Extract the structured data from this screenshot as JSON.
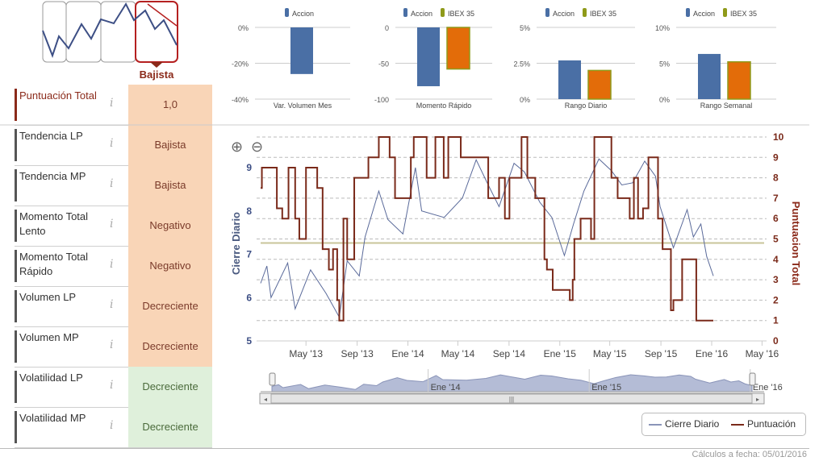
{
  "trend_selector": {
    "selected_label": "Bajista",
    "options": [
      "Lateral bajista",
      "Lateral",
      "Alcista",
      "Bajista"
    ]
  },
  "indicators": [
    {
      "label": "Puntuación Total",
      "value": "1,0",
      "tone": "orange",
      "accent": "#8b2a1a"
    },
    {
      "label": "Tendencia LP",
      "value": "Bajista",
      "tone": "orange"
    },
    {
      "label": "Tendencia MP",
      "value": "Bajista",
      "tone": "orange"
    },
    {
      "label": "Momento Total Lento",
      "value": "Negativo",
      "tone": "orange"
    },
    {
      "label": "Momento Total Rápido",
      "value": "Negativo",
      "tone": "orange"
    },
    {
      "label": "Volumen LP",
      "value": "Decreciente",
      "tone": "orange"
    },
    {
      "label": "Volumen MP",
      "value": "Decreciente",
      "tone": "orange"
    },
    {
      "label": "Volatilidad LP",
      "value": "Decreciente",
      "tone": "green"
    },
    {
      "label": "Volatilidad MP",
      "value": "Decreciente",
      "tone": "green"
    }
  ],
  "info_icon": "i",
  "colors": {
    "accion": "#4a6fa5",
    "ibex": "#e36c09",
    "ibex_legend": "#8f9a1a",
    "cierre": "#5a6a9a",
    "puntuacion": "#7a2a1a",
    "threshold": "#c8c49a",
    "peach": "#f9d5b7",
    "green": "#dff0db"
  },
  "chart_data": [
    {
      "type": "bar",
      "title": "Var. Volumen Mes",
      "legend": [
        "Accion"
      ],
      "categories": [
        "Accion"
      ],
      "values": [
        -26
      ],
      "ylim": [
        -40,
        0
      ],
      "ticks": [
        "0%",
        "-20%",
        "-40%"
      ]
    },
    {
      "type": "bar",
      "title": "Momento Rápido",
      "legend": [
        "Accion",
        "IBEX 35"
      ],
      "categories": [
        "Accion",
        "IBEX 35"
      ],
      "values": [
        -82,
        -58
      ],
      "ylim": [
        -100,
        0
      ],
      "ticks": [
        "0",
        "-50",
        "-100"
      ]
    },
    {
      "type": "bar",
      "title": "Rango Diario",
      "legend": [
        "Accion",
        "IBEX 35"
      ],
      "categories": [
        "Accion",
        "IBEX 35"
      ],
      "values": [
        2.7,
        2.0
      ],
      "ylim": [
        0,
        5
      ],
      "ticks": [
        "5%",
        "2.5%",
        "0%"
      ]
    },
    {
      "type": "bar",
      "title": "Rango Semanal",
      "legend": [
        "Accion",
        "IBEX 35"
      ],
      "categories": [
        "Accion",
        "IBEX 35"
      ],
      "values": [
        6.3,
        5.2
      ],
      "ylim": [
        0,
        10
      ],
      "ticks": [
        "10%",
        "5%",
        "0%"
      ]
    },
    {
      "type": "line",
      "ylabel": "Cierre Diario",
      "y2label": "Puntuacion Total",
      "ylim": [
        5,
        9.7
      ],
      "y2lim": [
        0,
        10
      ],
      "yticks": [
        "9",
        "8",
        "7",
        "6",
        "5"
      ],
      "y2ticks": [
        "10",
        "9",
        "8",
        "7",
        "6",
        "5",
        "4",
        "3",
        "2",
        "1",
        "0"
      ],
      "xticks": [
        "May '13",
        "Sep '13",
        "Ene '14",
        "May '14",
        "Sep '14",
        "Ene '15",
        "May '15",
        "Sep '15",
        "Ene '16",
        "May '16"
      ],
      "xtick_dates": [
        "2013-05-01",
        "2013-09-01",
        "2014-01-01",
        "2014-05-01",
        "2014-09-01",
        "2015-01-01",
        "2015-05-01",
        "2015-09-01",
        "2016-01-01",
        "2016-05-01"
      ],
      "xlim": [
        "2013-01-12",
        "2016-05-01"
      ],
      "threshold": 4.8,
      "series": [
        {
          "name": "Cierre Diario",
          "axis": "left",
          "points": [
            [
              "2013-01-12",
              6.33
            ],
            [
              "2013-01-27",
              6.73
            ],
            [
              "2013-02-06",
              6.0
            ],
            [
              "2013-03-18",
              6.8
            ],
            [
              "2013-04-05",
              5.74
            ],
            [
              "2013-05-12",
              6.64
            ],
            [
              "2013-06-18",
              6.1
            ],
            [
              "2013-07-20",
              5.55
            ],
            [
              "2013-08-08",
              6.85
            ],
            [
              "2013-09-06",
              6.5
            ],
            [
              "2013-09-20",
              7.4
            ],
            [
              "2013-10-23",
              8.46
            ],
            [
              "2013-11-14",
              7.8
            ],
            [
              "2013-12-20",
              7.47
            ],
            [
              "2014-01-19",
              9.0
            ],
            [
              "2014-02-03",
              8.0
            ],
            [
              "2014-03-29",
              7.85
            ],
            [
              "2014-05-12",
              8.3
            ],
            [
              "2014-06-14",
              9.18
            ],
            [
              "2014-07-13",
              8.6
            ],
            [
              "2014-08-08",
              8.1
            ],
            [
              "2014-09-13",
              9.1
            ],
            [
              "2014-10-08",
              8.9
            ],
            [
              "2014-11-14",
              8.2
            ],
            [
              "2014-12-13",
              7.85
            ],
            [
              "2015-01-12",
              6.97
            ],
            [
              "2015-02-03",
              7.7
            ],
            [
              "2015-02-28",
              8.46
            ],
            [
              "2015-04-05",
              9.2
            ],
            [
              "2015-05-05",
              8.93
            ],
            [
              "2015-05-30",
              8.6
            ],
            [
              "2015-06-25",
              8.65
            ],
            [
              "2015-07-24",
              9.15
            ],
            [
              "2015-08-19",
              8.8
            ],
            [
              "2015-08-30",
              8.1
            ],
            [
              "2015-10-01",
              7.15
            ],
            [
              "2015-11-03",
              8.03
            ],
            [
              "2015-11-18",
              7.4
            ],
            [
              "2015-12-06",
              7.7
            ],
            [
              "2015-12-20",
              6.95
            ],
            [
              "2016-01-05",
              6.5
            ]
          ]
        },
        {
          "name": "Puntuación",
          "axis": "right",
          "step": true,
          "points": [
            [
              "2013-01-12",
              7.5
            ],
            [
              "2013-01-15",
              8.5
            ],
            [
              "2013-02-20",
              6.5
            ],
            [
              "2013-03-05",
              6.0
            ],
            [
              "2013-03-20",
              8.5
            ],
            [
              "2013-04-05",
              6.0
            ],
            [
              "2013-04-15",
              5.0
            ],
            [
              "2013-05-01",
              8.5
            ],
            [
              "2013-05-28",
              7.5
            ],
            [
              "2013-06-10",
              4.5
            ],
            [
              "2013-06-25",
              3.5
            ],
            [
              "2013-07-05",
              4.5
            ],
            [
              "2013-07-15",
              2.0
            ],
            [
              "2013-07-20",
              1.0
            ],
            [
              "2013-07-30",
              6.0
            ],
            [
              "2013-08-08",
              4.0
            ],
            [
              "2013-08-25",
              8.0
            ],
            [
              "2013-09-28",
              9.0
            ],
            [
              "2013-10-23",
              10.0
            ],
            [
              "2013-11-18",
              9.0
            ],
            [
              "2013-12-01",
              7.0
            ],
            [
              "2014-01-08",
              9.0
            ],
            [
              "2014-01-15",
              10.0
            ],
            [
              "2014-02-15",
              8.0
            ],
            [
              "2014-03-08",
              10.0
            ],
            [
              "2014-03-28",
              8.0
            ],
            [
              "2014-04-08",
              10.0
            ],
            [
              "2014-05-08",
              9.0
            ],
            [
              "2014-07-13",
              7.0
            ],
            [
              "2014-08-08",
              8.0
            ],
            [
              "2014-08-22",
              6.0
            ],
            [
              "2014-09-02",
              8.0
            ],
            [
              "2014-10-01",
              10.0
            ],
            [
              "2014-10-15",
              8.0
            ],
            [
              "2014-11-03",
              7.0
            ],
            [
              "2014-11-25",
              4.0
            ],
            [
              "2014-12-01",
              3.5
            ],
            [
              "2014-12-15",
              2.5
            ],
            [
              "2015-01-25",
              2.0
            ],
            [
              "2015-02-01",
              3.0
            ],
            [
              "2015-02-05",
              5.0
            ],
            [
              "2015-02-20",
              6.0
            ],
            [
              "2015-03-17",
              5.0
            ],
            [
              "2015-03-25",
              10.0
            ],
            [
              "2015-05-05",
              8.0
            ],
            [
              "2015-05-20",
              7.0
            ],
            [
              "2015-06-18",
              6.0
            ],
            [
              "2015-06-28",
              8.0
            ],
            [
              "2015-07-08",
              6.0
            ],
            [
              "2015-07-20",
              6.5
            ],
            [
              "2015-08-02",
              9.0
            ],
            [
              "2015-08-25",
              6.0
            ],
            [
              "2015-09-05",
              4.5
            ],
            [
              "2015-09-25",
              1.5
            ],
            [
              "2015-10-01",
              2.0
            ],
            [
              "2015-10-22",
              4.0
            ],
            [
              "2015-11-25",
              1.0
            ],
            [
              "2016-01-05",
              1.0
            ]
          ]
        }
      ],
      "legend": [
        "Cierre Diario",
        "Puntuación"
      ],
      "legend_position": "bottom-right",
      "navigator": {
        "labels": [
          "Ene '14",
          "Ene '15",
          "Ene '16"
        ]
      }
    }
  ],
  "footer": "Cálculos a fecha: 05/01/2016"
}
